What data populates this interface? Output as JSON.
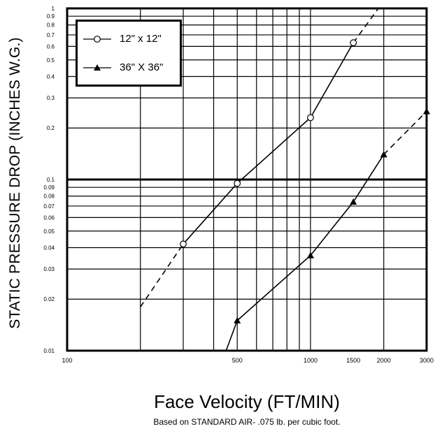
{
  "chart_data": {
    "type": "line",
    "xlabel": "Face Velocity (FT/MIN)",
    "ylabel": "STATIC PRESSURE DROP (INCHES W.G.)",
    "note": "Based on STANDARD AIR-  .075 lb. per cubic foot.",
    "x_scale": "log",
    "y_scale": "log",
    "xlim": [
      100,
      3000
    ],
    "ylim": [
      0.01,
      1
    ],
    "x_tick_labels": [
      "100",
      "500",
      "1000",
      "1500",
      "2000",
      "3000"
    ],
    "y_tick_labels": [
      "1",
      "0.9",
      "0.8",
      "0.7",
      "0.6",
      "0.5",
      "0.4",
      "0.3",
      "0.2",
      "0.1",
      "0.09",
      "0.08",
      "0.07",
      "0.06",
      "0.05",
      "0.04",
      "0.03",
      "0.02",
      "0.01"
    ],
    "grid": true,
    "legend_position": "top-left",
    "series": [
      {
        "name": "12\" x 12\"",
        "marker": "open-circle",
        "points": [
          [
            300,
            0.042
          ],
          [
            500,
            0.095
          ],
          [
            1000,
            0.23
          ],
          [
            1500,
            0.63
          ]
        ],
        "dashed_extensions": [
          [
            [
              200,
              0.018
            ],
            [
              300,
              0.042
            ]
          ],
          [
            [
              1500,
              0.63
            ],
            [
              1900,
              1.0
            ]
          ]
        ]
      },
      {
        "name": "36\" X 36\"",
        "marker": "filled-triangle",
        "points": [
          [
            500,
            0.015
          ],
          [
            1000,
            0.036
          ],
          [
            1500,
            0.074
          ],
          [
            2000,
            0.14
          ],
          [
            3000,
            0.25
          ]
        ],
        "solid_start": [
          450,
          0.01
        ],
        "dashed_extensions": [
          [
            [
              2000,
              0.14
            ],
            [
              3000,
              0.25
            ],
            [
              3000,
              0.26
            ]
          ]
        ]
      }
    ]
  }
}
